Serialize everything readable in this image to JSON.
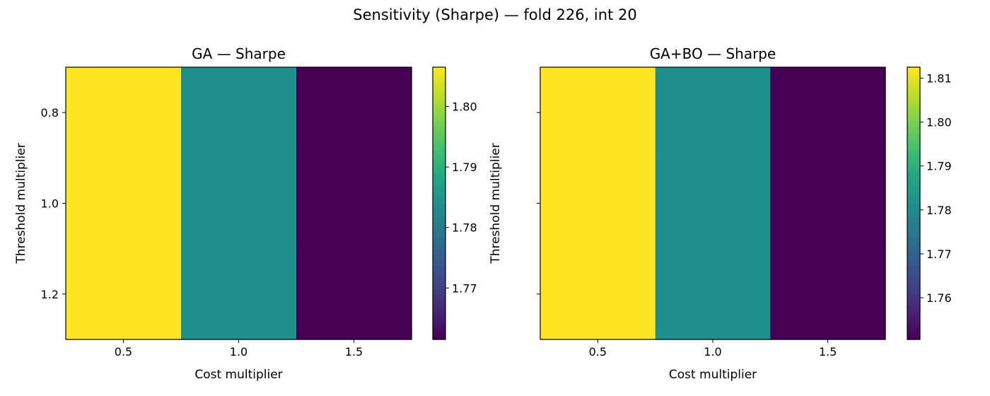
{
  "figure": {
    "suptitle": "Sensitivity (Sharpe) — fold 226, int 20"
  },
  "chart_data": [
    {
      "type": "heatmap",
      "title": "GA — Sharpe",
      "xlabel": "Cost multiplier",
      "ylabel": "Threshold multiplier",
      "x_ticklabels": [
        "0.5",
        "1.0",
        "1.5"
      ],
      "y_ticklabels": [
        "0.8",
        "1.0",
        "1.2"
      ],
      "show_y_ticklabels": true,
      "x": [
        0.5,
        1.0,
        1.5
      ],
      "y": [
        0.8,
        1.0,
        1.2
      ],
      "values": [
        [
          1.8065,
          1.784,
          1.7615
        ],
        [
          1.8065,
          1.784,
          1.7615
        ],
        [
          1.8065,
          1.784,
          1.7615
        ]
      ],
      "colormap": "viridis",
      "vmin": 1.7615,
      "vmax": 1.8065,
      "colorbar_ticks": [
        1.77,
        1.78,
        1.79,
        1.8
      ],
      "colorbar_ticklabels": [
        "1.77",
        "1.78",
        "1.79",
        "1.80"
      ],
      "grid": false
    },
    {
      "type": "heatmap",
      "title": "GA+BO — Sharpe",
      "xlabel": "Cost multiplier",
      "ylabel": "Threshold multiplier",
      "x_ticklabels": [
        "0.5",
        "1.0",
        "1.5"
      ],
      "y_ticklabels": [
        "0.8",
        "1.0",
        "1.2"
      ],
      "show_y_ticklabels": false,
      "x": [
        0.5,
        1.0,
        1.5
      ],
      "y": [
        0.8,
        1.0,
        1.2
      ],
      "values": [
        [
          1.8125,
          1.7815,
          1.7505
        ],
        [
          1.8125,
          1.7815,
          1.7505
        ],
        [
          1.8125,
          1.7815,
          1.7505
        ]
      ],
      "colormap": "viridis",
      "vmin": 1.7505,
      "vmax": 1.8125,
      "colorbar_ticks": [
        1.76,
        1.77,
        1.78,
        1.79,
        1.8,
        1.81
      ],
      "colorbar_ticklabels": [
        "1.76",
        "1.77",
        "1.78",
        "1.79",
        "1.80",
        "1.81"
      ],
      "grid": false
    }
  ]
}
